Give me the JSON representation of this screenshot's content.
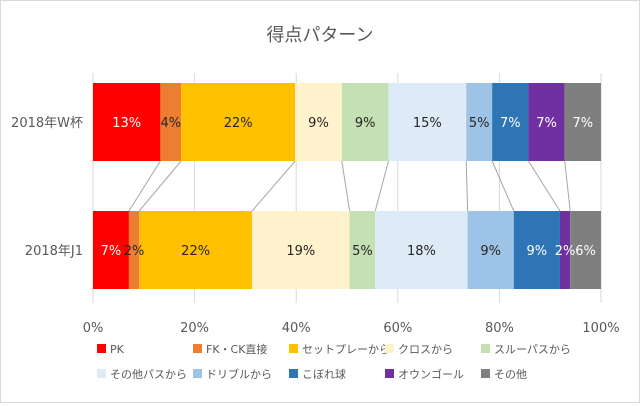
{
  "chart_data": {
    "type": "bar",
    "orientation": "horizontal",
    "stacked": "percent",
    "title": "得点パターン",
    "categories": [
      "2018年W杯",
      "2018年J1"
    ],
    "series": [
      {
        "name": "PK",
        "color": "#ff0000",
        "values": [
          13,
          7
        ],
        "labels": [
          "13%",
          "7%"
        ],
        "label_color": "#ffffff"
      },
      {
        "name": "FK・CK直接",
        "color": "#ed7d31",
        "values": [
          4,
          2
        ],
        "labels": [
          "4%",
          "2%"
        ],
        "label_color": "#262626"
      },
      {
        "name": "セットプレーから",
        "color": "#ffc000",
        "values": [
          22,
          22
        ],
        "labels": [
          "22%",
          "22%"
        ],
        "label_color": "#262626"
      },
      {
        "name": "クロスから",
        "color": "#fff2cc",
        "values": [
          9,
          19
        ],
        "labels": [
          "9%",
          "19%"
        ],
        "label_color": "#262626"
      },
      {
        "name": "スルーパスから",
        "color": "#c5e0b4",
        "values": [
          9,
          5
        ],
        "labels": [
          "9%",
          "5%"
        ],
        "label_color": "#262626"
      },
      {
        "name": "その他パスから",
        "color": "#deebf7",
        "values": [
          15,
          18
        ],
        "labels": [
          "15%",
          "18%"
        ],
        "label_color": "#262626"
      },
      {
        "name": "ドリブルから",
        "color": "#9dc3e6",
        "values": [
          5,
          9
        ],
        "labels": [
          "5%",
          "9%"
        ],
        "label_color": "#262626"
      },
      {
        "name": "こぼれ球",
        "color": "#2e75b6",
        "values": [
          7,
          9
        ],
        "labels": [
          "7%",
          "9%"
        ],
        "label_color": "#ffffff"
      },
      {
        "name": "オウンゴール",
        "color": "#7030a0",
        "values": [
          7,
          2
        ],
        "labels": [
          "7%",
          "2%"
        ],
        "label_color": "#ffffff"
      },
      {
        "name": "その他",
        "color": "#7f7f7f",
        "values": [
          7,
          6
        ],
        "labels": [
          "7%",
          "6%"
        ],
        "label_color": "#ffffff"
      }
    ],
    "xlim": [
      0,
      100
    ],
    "xticks": [
      "0%",
      "20%",
      "40%",
      "60%",
      "80%",
      "100%"
    ],
    "xlabel": "",
    "ylabel": "",
    "grid": "vertical",
    "series_lines": true,
    "legend": "bottom"
  }
}
